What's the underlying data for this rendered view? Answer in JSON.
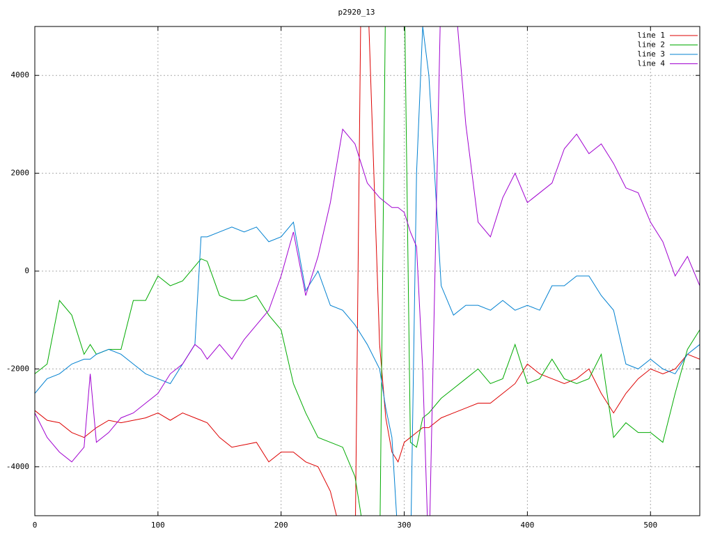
{
  "chart_data": {
    "type": "line",
    "title": "p2920_13",
    "x": [
      0,
      10,
      20,
      30,
      40,
      45,
      50,
      60,
      70,
      80,
      90,
      100,
      110,
      120,
      130,
      135,
      140,
      150,
      160,
      170,
      180,
      190,
      200,
      210,
      220,
      230,
      240,
      250,
      260,
      265,
      270,
      280,
      285,
      290,
      295,
      300,
      305,
      310,
      315,
      320,
      330,
      340,
      350,
      360,
      370,
      380,
      390,
      400,
      410,
      420,
      430,
      440,
      450,
      460,
      470,
      480,
      490,
      500,
      510,
      520,
      530,
      540
    ],
    "series": [
      {
        "name": "line 1",
        "color": "#dd0000",
        "values": [
          -2850,
          -3050,
          -3100,
          -3300,
          -3400,
          -3300,
          -3200,
          -3050,
          -3100,
          -3050,
          -3000,
          -2900,
          -3050,
          -2900,
          -3000,
          -3050,
          -3100,
          -3400,
          -3600,
          -3550,
          -3500,
          -3900,
          -3700,
          -3700,
          -3900,
          -4000,
          -4500,
          -5500,
          -6000,
          6000,
          6000,
          -1500,
          -3000,
          -3700,
          -3900,
          -3500,
          -3400,
          -3300,
          -3200,
          -3200,
          -3000,
          -2900,
          -2800,
          -2700,
          -2700,
          -2500,
          -2300,
          -1900,
          -2100,
          -2200,
          -2300,
          -2200,
          -2000,
          -2500,
          -2900,
          -2500,
          -2200,
          -2000,
          -2100,
          -2000,
          -1700,
          -1800
        ]
      },
      {
        "name": "line 2",
        "color": "#00aa00",
        "values": [
          -2100,
          -1900,
          -600,
          -900,
          -1700,
          -1500,
          -1700,
          -1600,
          -1600,
          -600,
          -600,
          -100,
          -300,
          -200,
          100,
          250,
          200,
          -500,
          -600,
          -600,
          -500,
          -900,
          -1200,
          -2300,
          -2900,
          -3400,
          -3500,
          -3600,
          -4200,
          -5000,
          -6000,
          -6000,
          6000,
          6000,
          6000,
          6000,
          -3500,
          -3600,
          -3000,
          -2900,
          -2600,
          -2400,
          -2200,
          -2000,
          -2300,
          -2200,
          -1500,
          -2300,
          -2200,
          -1800,
          -2200,
          -2300,
          -2200,
          -1700,
          -3400,
          -3100,
          -3300,
          -3300,
          -3500,
          -2500,
          -1600,
          -1200
        ]
      },
      {
        "name": "line 3",
        "color": "#0080d0",
        "values": [
          -2500,
          -2200,
          -2100,
          -1900,
          -1800,
          -1800,
          -1700,
          -1600,
          -1700,
          -1900,
          -2100,
          -2200,
          -2300,
          -1900,
          -1500,
          700,
          700,
          800,
          900,
          800,
          900,
          600,
          700,
          1000,
          -400,
          0,
          -700,
          -800,
          -1100,
          -1300,
          -1500,
          -2000,
          -2800,
          -3400,
          -5500,
          -6000,
          -6000,
          2000,
          5000,
          4000,
          -300,
          -900,
          -700,
          -700,
          -800,
          -600,
          -800,
          -700,
          -800,
          -300,
          -300,
          -100,
          -100,
          -500,
          -800,
          -1900,
          -2000,
          -1800,
          -2000,
          -2100,
          -1700,
          -1500
        ]
      },
      {
        "name": "line 4",
        "color": "#a000d0",
        "values": [
          -2900,
          -3400,
          -3700,
          -3900,
          -3600,
          -2100,
          -3500,
          -3300,
          -3000,
          -2900,
          -2700,
          -2500,
          -2100,
          -1900,
          -1500,
          -1600,
          -1800,
          -1500,
          -1800,
          -1400,
          -1100,
          -800,
          -100,
          800,
          -500,
          300,
          1400,
          2900,
          2600,
          2200,
          1800,
          1500,
          1400,
          1300,
          1300,
          1200,
          800,
          500,
          -2000,
          -6000,
          6000,
          6000,
          3000,
          1000,
          700,
          1500,
          2000,
          1400,
          1600,
          1800,
          2500,
          2800,
          2400,
          2600,
          2200,
          1700,
          1600,
          1000,
          600,
          -100,
          300,
          -300
        ]
      }
    ],
    "xlim": [
      0,
      540
    ],
    "ylim": [
      -5000,
      5000
    ],
    "xticks": [
      0,
      100,
      200,
      300,
      400,
      500
    ],
    "yticks": [
      -4000,
      -2000,
      0,
      2000,
      4000
    ],
    "grid": true,
    "legend": "top-right"
  }
}
